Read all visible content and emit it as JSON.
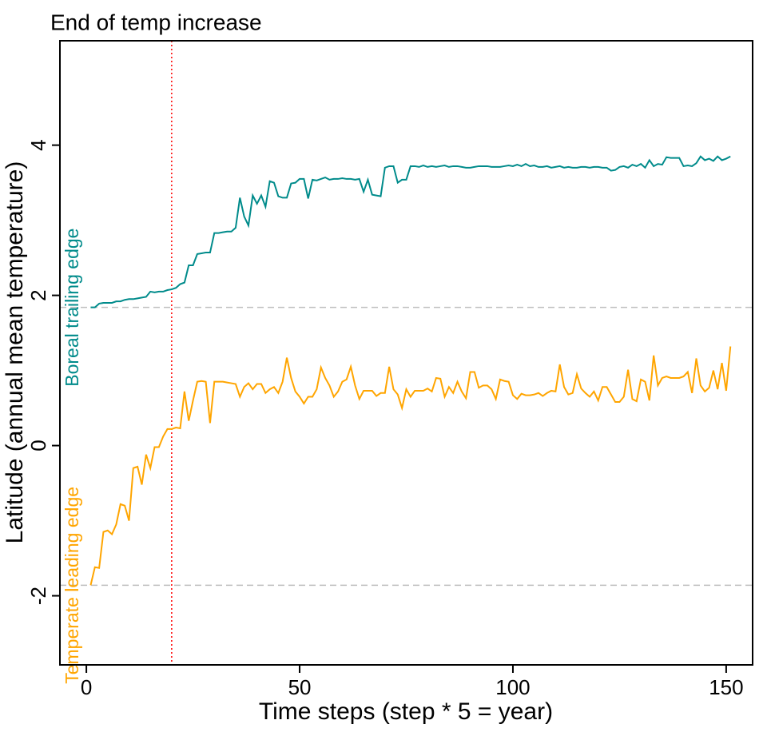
{
  "chart_data": {
    "type": "line",
    "title": "End of temp increase",
    "xlabel": "Time steps (step * 5 = year)",
    "ylabel": "Latitude (annual mean temperature)",
    "xlim": [
      -6.2,
      156.2
    ],
    "ylim": [
      -2.92,
      5.39
    ],
    "xticks": [
      0,
      50,
      100,
      150
    ],
    "yticks": [
      -2,
      0,
      2,
      4
    ],
    "hlines": [
      1.84,
      -1.86
    ],
    "hline_color": "#bebebe",
    "vline": 20,
    "vline_color": "#ff0000",
    "x": [
      1,
      2,
      3,
      4,
      5,
      6,
      7,
      8,
      9,
      10,
      11,
      12,
      13,
      14,
      15,
      16,
      17,
      18,
      19,
      20,
      21,
      22,
      23,
      24,
      25,
      26,
      27,
      28,
      29,
      30,
      31,
      32,
      33,
      34,
      35,
      36,
      37,
      38,
      39,
      40,
      41,
      42,
      43,
      44,
      45,
      46,
      47,
      48,
      49,
      50,
      51,
      52,
      53,
      54,
      55,
      56,
      57,
      58,
      59,
      60,
      61,
      62,
      63,
      64,
      65,
      66,
      67,
      68,
      69,
      70,
      71,
      72,
      73,
      74,
      75,
      76,
      77,
      78,
      79,
      80,
      81,
      82,
      83,
      84,
      85,
      86,
      87,
      88,
      89,
      90,
      91,
      92,
      93,
      94,
      95,
      96,
      97,
      98,
      99,
      100,
      101,
      102,
      103,
      104,
      105,
      106,
      107,
      108,
      109,
      110,
      111,
      112,
      113,
      114,
      115,
      116,
      117,
      118,
      119,
      120,
      121,
      122,
      123,
      124,
      125,
      126,
      127,
      128,
      129,
      130,
      131,
      132,
      133,
      134,
      135,
      136,
      137,
      138,
      139,
      140,
      141,
      142,
      143,
      144,
      145,
      146,
      147,
      148,
      149,
      150,
      151
    ],
    "series": [
      {
        "name": "Boreal trailing edge",
        "color": "#008b8b",
        "values": [
          1.84,
          1.84,
          1.89,
          1.9,
          1.9,
          1.9,
          1.92,
          1.92,
          1.94,
          1.95,
          1.95,
          1.96,
          1.97,
          1.98,
          2.05,
          2.04,
          2.05,
          2.05,
          2.07,
          2.08,
          2.1,
          2.15,
          2.17,
          2.4,
          2.4,
          2.55,
          2.56,
          2.57,
          2.57,
          2.83,
          2.83,
          2.84,
          2.85,
          2.85,
          2.9,
          3.3,
          3.05,
          2.93,
          3.33,
          3.22,
          3.33,
          3.18,
          3.52,
          3.5,
          3.32,
          3.3,
          3.3,
          3.49,
          3.5,
          3.55,
          3.55,
          3.29,
          3.54,
          3.53,
          3.55,
          3.57,
          3.54,
          3.55,
          3.55,
          3.56,
          3.55,
          3.55,
          3.54,
          3.55,
          3.38,
          3.54,
          3.34,
          3.33,
          3.32,
          3.7,
          3.72,
          3.72,
          3.5,
          3.54,
          3.54,
          3.72,
          3.72,
          3.71,
          3.73,
          3.71,
          3.72,
          3.71,
          3.72,
          3.73,
          3.71,
          3.72,
          3.72,
          3.71,
          3.7,
          3.7,
          3.71,
          3.72,
          3.72,
          3.72,
          3.71,
          3.71,
          3.71,
          3.72,
          3.73,
          3.72,
          3.74,
          3.72,
          3.75,
          3.72,
          3.73,
          3.71,
          3.71,
          3.72,
          3.7,
          3.71,
          3.72,
          3.7,
          3.71,
          3.7,
          3.7,
          3.71,
          3.71,
          3.7,
          3.71,
          3.71,
          3.7,
          3.7,
          3.66,
          3.67,
          3.71,
          3.72,
          3.7,
          3.74,
          3.72,
          3.75,
          3.7,
          3.8,
          3.72,
          3.75,
          3.74,
          3.84,
          3.83,
          3.83,
          3.83,
          3.72,
          3.73,
          3.72,
          3.76,
          3.85,
          3.8,
          3.82,
          3.79,
          3.85,
          3.8,
          3.82,
          3.85
        ]
      },
      {
        "name": "Temperate leading edge",
        "color": "#ffa500",
        "values": [
          -1.86,
          -1.62,
          -1.63,
          -1.15,
          -1.13,
          -1.18,
          -1.05,
          -0.78,
          -0.8,
          -1.0,
          -0.3,
          -0.28,
          -0.52,
          -0.12,
          -0.3,
          -0.02,
          -0.02,
          0.12,
          0.22,
          0.22,
          0.24,
          0.23,
          0.72,
          0.33,
          0.6,
          0.85,
          0.86,
          0.85,
          0.3,
          0.85,
          0.85,
          0.85,
          0.84,
          0.83,
          0.82,
          0.65,
          0.78,
          0.83,
          0.75,
          0.82,
          0.82,
          0.7,
          0.75,
          0.78,
          0.7,
          0.85,
          1.17,
          0.9,
          0.72,
          0.65,
          0.56,
          0.65,
          0.65,
          0.75,
          1.04,
          0.9,
          0.8,
          0.65,
          0.72,
          0.85,
          0.88,
          1.05,
          0.8,
          0.62,
          0.73,
          0.73,
          0.73,
          0.66,
          0.7,
          0.7,
          1.05,
          0.75,
          0.68,
          0.5,
          0.75,
          0.65,
          0.73,
          0.73,
          0.73,
          0.76,
          0.72,
          0.9,
          0.89,
          0.65,
          0.78,
          0.7,
          0.85,
          0.72,
          0.63,
          0.98,
          0.98,
          0.77,
          0.8,
          0.8,
          0.75,
          0.62,
          0.88,
          0.86,
          0.85,
          0.67,
          0.62,
          0.69,
          0.67,
          0.67,
          0.68,
          0.7,
          0.66,
          0.7,
          0.73,
          0.72,
          1.08,
          0.78,
          0.68,
          0.7,
          0.95,
          0.76,
          0.7,
          0.65,
          0.72,
          0.6,
          0.78,
          0.78,
          0.68,
          0.58,
          0.58,
          0.65,
          1.01,
          0.62,
          0.59,
          0.88,
          0.85,
          0.6,
          1.2,
          0.8,
          0.9,
          0.92,
          0.9,
          0.9,
          0.9,
          0.92,
          0.98,
          0.7,
          1.16,
          0.8,
          0.72,
          0.77,
          1.0,
          0.75,
          1.1,
          0.73,
          1.32
        ]
      }
    ]
  }
}
